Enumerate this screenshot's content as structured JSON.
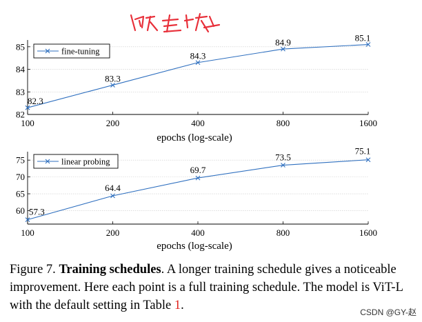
{
  "annotation_color": "#e8303a",
  "line_color": "#2e6fbf",
  "chart_data": [
    {
      "type": "line",
      "x": [
        100,
        200,
        400,
        800,
        1600
      ],
      "x_ticks": [
        "100",
        "200",
        "400",
        "800",
        "1600"
      ],
      "x_scale": "log",
      "xlabel": "epochs (log-scale)",
      "ylabel": "",
      "ylim": [
        82,
        85.3
      ],
      "y_ticks": [
        82,
        83,
        84,
        85
      ],
      "series": [
        {
          "name": "fine-tuning",
          "values": [
            82.3,
            83.3,
            84.3,
            84.9,
            85.1
          ],
          "labels": [
            "82.3",
            "83.3",
            "84.3",
            "84.9",
            "85.1"
          ]
        }
      ],
      "grid": "horizontal",
      "legend": "top-left"
    },
    {
      "type": "line",
      "x": [
        100,
        200,
        400,
        800,
        1600
      ],
      "x_ticks": [
        "100",
        "200",
        "400",
        "800",
        "1600"
      ],
      "x_scale": "log",
      "xlabel": "epochs (log-scale)",
      "ylabel": "",
      "ylim": [
        56,
        77.5
      ],
      "y_ticks": [
        60,
        65,
        70,
        75
      ],
      "series": [
        {
          "name": "linear probing",
          "values": [
            57.3,
            64.4,
            69.7,
            73.5,
            75.1
          ],
          "labels": [
            "57.3",
            "64.4",
            "69.7",
            "73.5",
            "75.1"
          ]
        }
      ],
      "grid": "horizontal",
      "legend": "top-left"
    }
  ],
  "caption": {
    "prefix": "Figure 7.",
    "bold": "Training schedules",
    "rest": ". A longer training schedule gives a noticeable improvement. Here each point is a full training schedule. The model is ViT-L with the default setting in Table ",
    "ref": "1",
    "end": "."
  },
  "watermark": "CSDN @GY-赵"
}
